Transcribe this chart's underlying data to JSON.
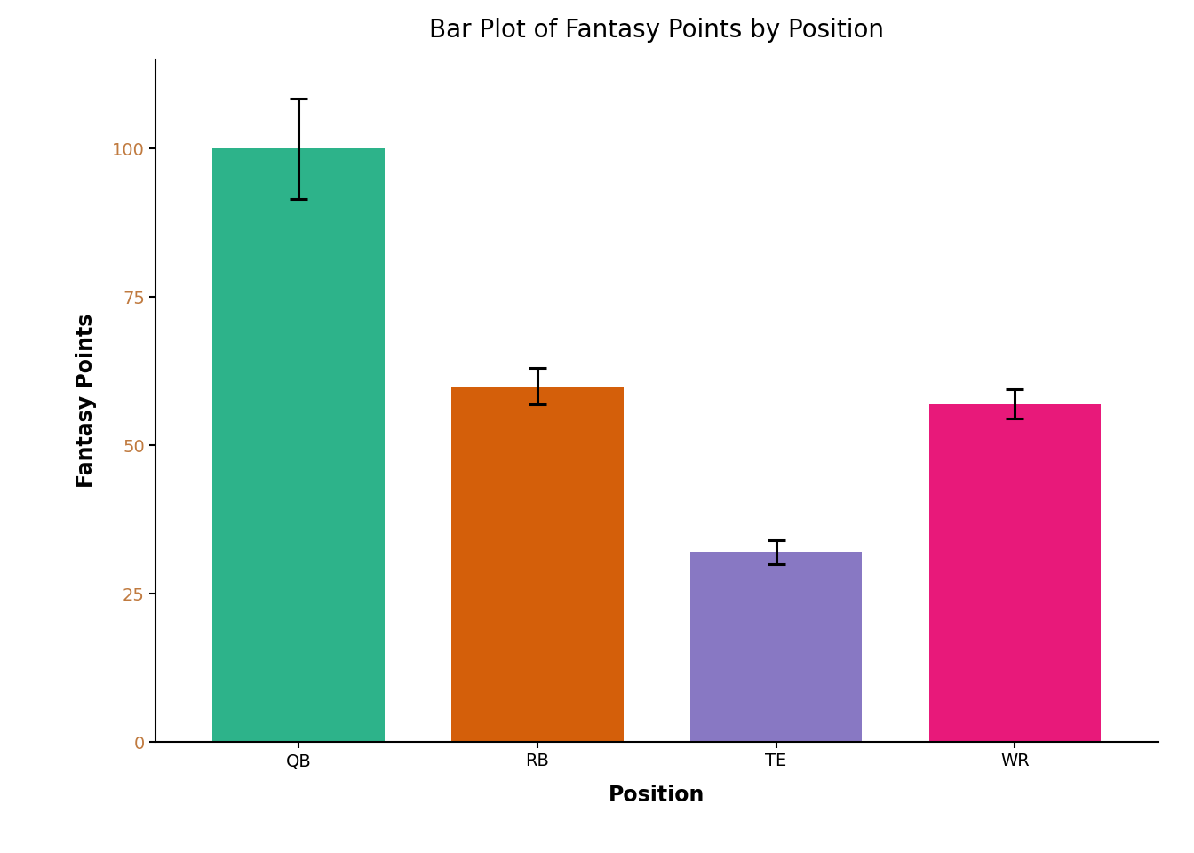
{
  "categories": [
    "QB",
    "RB",
    "TE",
    "WR"
  ],
  "values": [
    100,
    60,
    32,
    57
  ],
  "errors": [
    8.5,
    3.0,
    2.0,
    2.5
  ],
  "bar_colors": [
    "#2db38a",
    "#d45f0a",
    "#8878c3",
    "#e8197a"
  ],
  "title": "Bar Plot of Fantasy Points by Position",
  "xlabel": "Position",
  "ylabel": "Fantasy Points",
  "ylim": [
    0,
    115
  ],
  "yticks": [
    0,
    25,
    50,
    75,
    100
  ],
  "title_fontsize": 20,
  "label_fontsize": 17,
  "tick_fontsize": 14,
  "background_color": "#ffffff",
  "bar_width": 0.72,
  "capsize": 7,
  "error_linewidth": 2.2,
  "cap_thickness": 2.2,
  "ytick_color": "#c07a3f"
}
